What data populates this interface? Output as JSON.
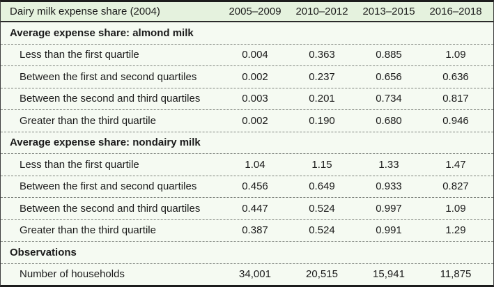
{
  "table": {
    "title": "Dairy milk expense share (2004)",
    "columns": [
      "2005–2009",
      "2010–2012",
      "2013–2015",
      "2016–2018"
    ],
    "sections": [
      {
        "header": "Average expense share: almond milk",
        "rows": [
          {
            "label": "Less than the first quartile",
            "values": [
              "0.004",
              "0.363",
              "0.885",
              "1.09"
            ]
          },
          {
            "label": "Between the first and second quartiles",
            "values": [
              "0.002",
              "0.237",
              "0.656",
              "0.636"
            ]
          },
          {
            "label": "Between the second and third quartiles",
            "values": [
              "0.003",
              "0.201",
              "0.734",
              "0.817"
            ]
          },
          {
            "label": "Greater than the third quartile",
            "values": [
              "0.002",
              "0.190",
              "0.680",
              "0.946"
            ]
          }
        ]
      },
      {
        "header": "Average expense share: nondairy milk",
        "rows": [
          {
            "label": "Less than the first quartile",
            "values": [
              "1.04",
              "1.15",
              "1.33",
              "1.47"
            ]
          },
          {
            "label": "Between the first and second quartiles",
            "values": [
              "0.456",
              "0.649",
              "0.933",
              "0.827"
            ]
          },
          {
            "label": "Between the second and third quartiles",
            "values": [
              "0.447",
              "0.524",
              "0.997",
              "1.09"
            ]
          },
          {
            "label": "Greater than the third quartile",
            "values": [
              "0.387",
              "0.524",
              "0.991",
              "1.29"
            ]
          }
        ]
      },
      {
        "header": "Observations",
        "rows": [
          {
            "label": "Number of households",
            "values": [
              "34,001",
              "20,515",
              "15,941",
              "11,875"
            ]
          }
        ]
      }
    ],
    "colors": {
      "header_bg": "#e5f2de",
      "body_bg": "#f5faf2",
      "border_dark": "#1c1c1c",
      "dash_color": "#7d827c",
      "text_color": "#1b1b1b"
    }
  },
  "chart_data": {
    "type": "table",
    "title": "Dairy milk expense share (2004)",
    "categories": [
      "2005–2009",
      "2010–2012",
      "2013–2015",
      "2016–2018"
    ],
    "series": [
      {
        "name": "Almond milk: Less than the first quartile",
        "values": [
          0.004,
          0.363,
          0.885,
          1.09
        ]
      },
      {
        "name": "Almond milk: Between the first and second quartiles",
        "values": [
          0.002,
          0.237,
          0.656,
          0.636
        ]
      },
      {
        "name": "Almond milk: Between the second and third quartiles",
        "values": [
          0.003,
          0.201,
          0.734,
          0.817
        ]
      },
      {
        "name": "Almond milk: Greater than the third quartile",
        "values": [
          0.002,
          0.19,
          0.68,
          0.946
        ]
      },
      {
        "name": "Nondairy milk: Less than the first quartile",
        "values": [
          1.04,
          1.15,
          1.33,
          1.47
        ]
      },
      {
        "name": "Nondairy milk: Between the first and second quartiles",
        "values": [
          0.456,
          0.649,
          0.933,
          0.827
        ]
      },
      {
        "name": "Nondairy milk: Between the second and third quartiles",
        "values": [
          0.447,
          0.524,
          0.997,
          1.09
        ]
      },
      {
        "name": "Nondairy milk: Greater than the third quartile",
        "values": [
          0.387,
          0.524,
          0.991,
          1.29
        ]
      },
      {
        "name": "Number of households",
        "values": [
          34001,
          20515,
          15941,
          11875
        ]
      }
    ]
  }
}
